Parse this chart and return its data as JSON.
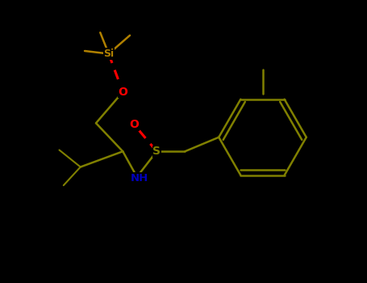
{
  "background_color": "#000000",
  "bond_color": "#808000",
  "si_color": "#b08000",
  "s_color": "#808000",
  "o_color": "#ff0000",
  "n_color": "#0000bb",
  "figsize": [
    4.55,
    3.5
  ],
  "dpi": 100,
  "label_si": "Si",
  "label_s": "S",
  "label_o": "O",
  "label_nh": "NH"
}
